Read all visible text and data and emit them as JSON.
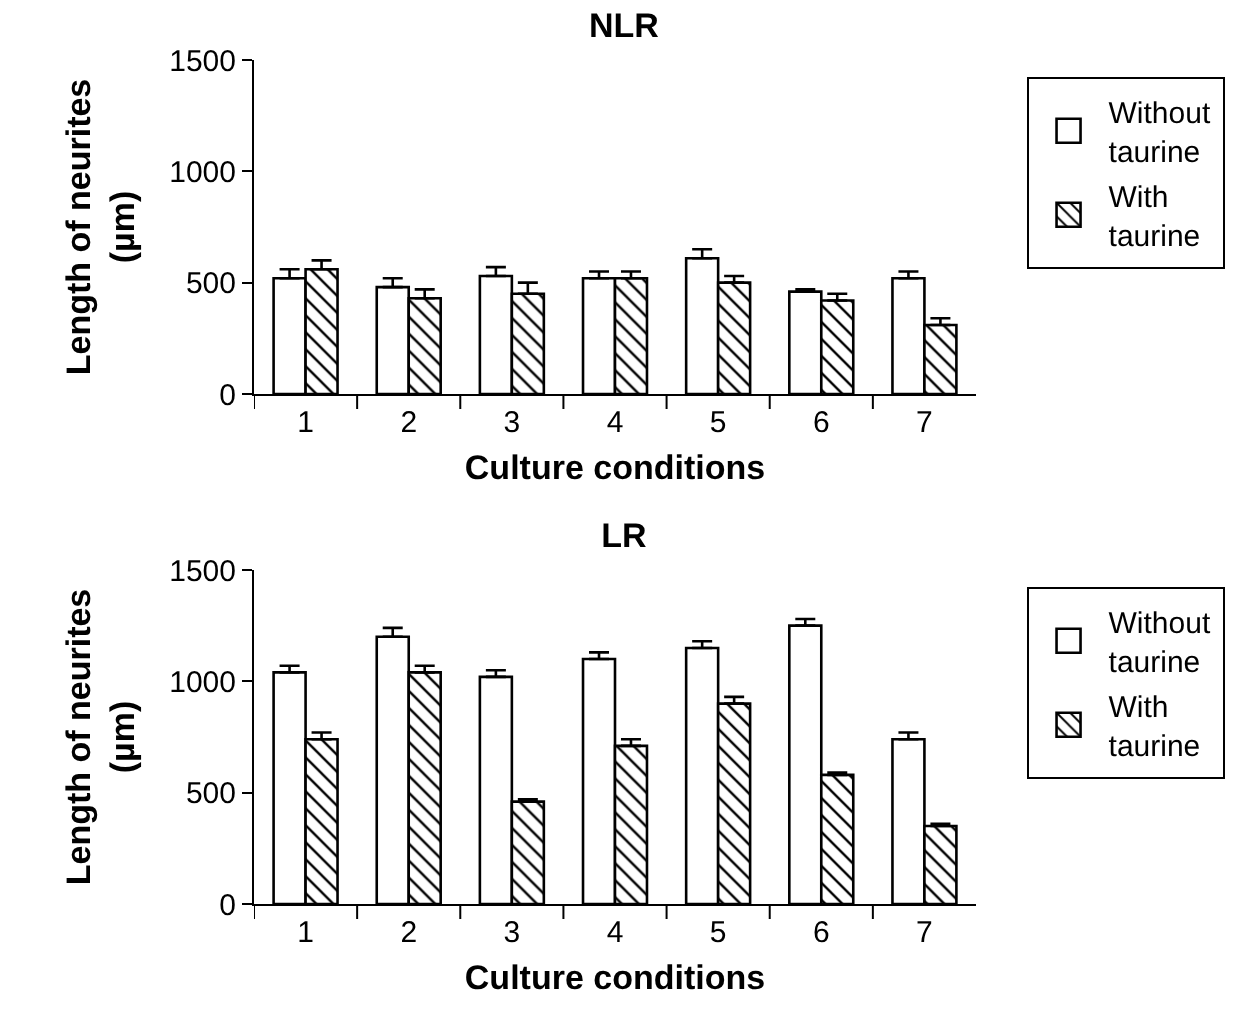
{
  "chart_data": [
    {
      "type": "bar",
      "title": "NLR",
      "xlabel": "Culture conditions",
      "ylabel": "Length of neurites\n(µm)",
      "categories": [
        "1",
        "2",
        "3",
        "4",
        "5",
        "6",
        "7"
      ],
      "series": [
        {
          "name": "Without taurine",
          "color": "#ffffff",
          "values": [
            520,
            480,
            530,
            520,
            610,
            460,
            520
          ],
          "errors": [
            [
              520,
              560
            ],
            [
              480,
              520
            ],
            [
              530,
              570
            ],
            [
              520,
              550
            ],
            [
              610,
              650
            ],
            [
              460,
              470
            ],
            [
              520,
              550
            ]
          ]
        },
        {
          "name": "With taurine",
          "color": "#000000",
          "values": [
            560,
            430,
            450,
            520,
            500,
            420,
            310
          ],
          "errors": [
            [
              560,
              600
            ],
            [
              430,
              470
            ],
            [
              450,
              500
            ],
            [
              520,
              550
            ],
            [
              500,
              530
            ],
            [
              420,
              450
            ],
            [
              310,
              340
            ]
          ]
        }
      ],
      "ylim": [
        0,
        1500
      ],
      "yticks": [
        0,
        500,
        1000,
        1500
      ],
      "grid": false,
      "legend": "right"
    },
    {
      "type": "bar",
      "title": "LR",
      "xlabel": "Culture conditions",
      "ylabel": "Length of neurites\n(µm)",
      "categories": [
        "1",
        "2",
        "3",
        "4",
        "5",
        "6",
        "7"
      ],
      "series": [
        {
          "name": "Without taurine",
          "color": "#ffffff",
          "values": [
            1040,
            1200,
            1020,
            1100,
            1150,
            1250,
            740
          ],
          "errors": [
            [
              1040,
              1070
            ],
            [
              1200,
              1240
            ],
            [
              1020,
              1050
            ],
            [
              1100,
              1130
            ],
            [
              1150,
              1180
            ],
            [
              1250,
              1280
            ],
            [
              740,
              770
            ]
          ]
        },
        {
          "name": "With taurine",
          "color": "#000000",
          "values": [
            740,
            1040,
            460,
            710,
            900,
            580,
            350
          ],
          "errors": [
            [
              740,
              770
            ],
            [
              1040,
              1070
            ],
            [
              460,
              470
            ],
            [
              710,
              740
            ],
            [
              900,
              930
            ],
            [
              580,
              590
            ],
            [
              350,
              360
            ]
          ]
        }
      ],
      "ylim": [
        0,
        1500
      ],
      "yticks": [
        0,
        500,
        1000,
        1500
      ],
      "grid": false,
      "legend": "right"
    }
  ]
}
